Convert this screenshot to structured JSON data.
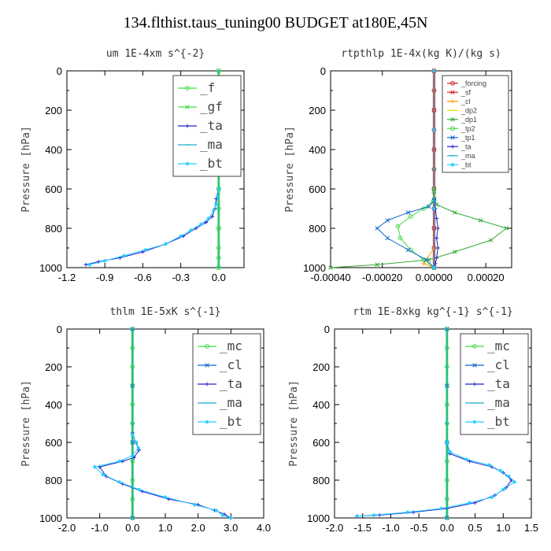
{
  "title": "134.flthist.taus_tuning00  BUDGET at180E,45N",
  "chart_data": [
    {
      "type": "line",
      "title": "um   1E-4xm s^{-2}",
      "ylabel": "Pressure [hPa]",
      "xlim": [
        -1.2,
        0.2
      ],
      "ylim": [
        1000,
        0
      ],
      "xticks": [
        "-1.2",
        "-0.9",
        "-0.6",
        "-0.3",
        "0.0"
      ],
      "yticks": [
        "0",
        "200",
        "400",
        "600",
        "800",
        "1000"
      ],
      "legend_position": "top-right",
      "legend_size": "large",
      "series": [
        {
          "name": "_f",
          "color": "#44dd44",
          "marker": "o",
          "x": [
            0.0,
            0.0,
            0.0,
            0.0,
            0.0,
            0.0,
            0.0,
            0.0,
            0.0,
            0.0,
            0.0,
            0.0
          ],
          "y": [
            0,
            100,
            200,
            300,
            400,
            500,
            600,
            700,
            800,
            900,
            950,
            1000
          ]
        },
        {
          "name": "_gf",
          "color": "#44dd44",
          "marker": "x",
          "x": [
            0.0,
            0.0,
            0.0,
            0.0,
            0.0,
            0.0
          ],
          "y": [
            0,
            200,
            400,
            600,
            800,
            1000
          ]
        },
        {
          "name": "_ta",
          "color": "#2222cc",
          "marker": "+",
          "x": [
            0.0,
            -0.02,
            -0.03,
            -0.05,
            -0.1,
            -0.18,
            -0.28,
            -0.42,
            -0.6,
            -0.78,
            -0.95,
            -1.05
          ],
          "y": [
            600,
            650,
            700,
            740,
            770,
            800,
            840,
            880,
            920,
            950,
            970,
            985
          ]
        },
        {
          "name": "_ma",
          "color": "#22aacc",
          "marker": "-",
          "x": [
            0.0,
            0.0,
            0.0,
            0.0
          ],
          "y": [
            0,
            300,
            600,
            1000
          ]
        },
        {
          "name": "_bt",
          "color": "#22ccff",
          "marker": "*",
          "x": [
            0.0,
            -0.01,
            -0.02,
            -0.04,
            -0.08,
            -0.14,
            -0.22,
            -0.3,
            -0.42,
            -0.58,
            -0.75,
            -0.9,
            -1.02
          ],
          "y": [
            600,
            640,
            680,
            710,
            750,
            780,
            810,
            840,
            880,
            910,
            940,
            965,
            985
          ]
        }
      ]
    },
    {
      "type": "line",
      "title": "rtpthlp   1E-4x(kg K)/(kg s)",
      "ylabel": "Pressure [hPa]",
      "xlim": [
        -0.0004,
        0.0003
      ],
      "ylim": [
        1000,
        0
      ],
      "xticks": [
        "-0.00040",
        "-0.00020",
        "0.00000",
        "0.00020"
      ],
      "yticks": [
        "0",
        "200",
        "400",
        "600",
        "800",
        "1000"
      ],
      "legend_position": "top-right",
      "legend_size": "small",
      "series": [
        {
          "name": "_forcing",
          "color": "#cc2222",
          "marker": "o",
          "x": [
            0,
            0,
            0,
            0,
            0,
            0,
            0,
            0,
            0,
            0,
            0
          ],
          "y": [
            0,
            100,
            200,
            300,
            400,
            500,
            600,
            700,
            800,
            900,
            1000
          ]
        },
        {
          "name": "_sf",
          "color": "#cc2222",
          "marker": "x",
          "x": [
            0,
            0,
            0,
            0,
            0,
            0
          ],
          "y": [
            0,
            200,
            400,
            600,
            800,
            1000
          ]
        },
        {
          "name": "_cl",
          "color": "#ff9900",
          "marker": "+",
          "x": [
            0,
            0,
            0,
            0,
            -4e-05,
            0
          ],
          "y": [
            0,
            300,
            600,
            900,
            980,
            1000
          ]
        },
        {
          "name": "_dp2",
          "color": "#dddd00",
          "marker": "-",
          "x": [
            0,
            0,
            0
          ],
          "y": [
            0,
            500,
            1000
          ]
        },
        {
          "name": "_dp1",
          "color": "#33aa33",
          "marker": "x",
          "x": [
            0,
            2e-06,
            1e-05,
            8e-05,
            0.00018,
            0.00028,
            0.00022,
            8e-05,
            -2e-05,
            -0.00022,
            -0.0004
          ],
          "y": [
            600,
            650,
            680,
            720,
            760,
            800,
            860,
            920,
            960,
            985,
            1000
          ]
        },
        {
          "name": "_tp2",
          "color": "#44dd44",
          "marker": "o",
          "x": [
            0,
            -2e-06,
            -4e-05,
            -9e-05,
            -0.00014,
            -0.00013,
            -9e-05,
            -4e-05,
            0
          ],
          "y": [
            620,
            660,
            700,
            740,
            790,
            850,
            910,
            960,
            1000
          ]
        },
        {
          "name": "_tp1",
          "color": "#1166cc",
          "marker": "x",
          "x": [
            0,
            -2e-05,
            -0.0001,
            -0.00018,
            -0.00022,
            -0.00018,
            -0.0001,
            -3e-05,
            0
          ],
          "y": [
            660,
            690,
            720,
            760,
            800,
            850,
            910,
            960,
            1000
          ]
        },
        {
          "name": "_ta",
          "color": "#2222cc",
          "marker": "+",
          "x": [
            0,
            5e-06,
            1e-05,
            1.5e-05,
            1e-05,
            1.5e-05,
            1e-05,
            5e-06,
            0
          ],
          "y": [
            650,
            700,
            750,
            800,
            850,
            900,
            950,
            980,
            1000
          ]
        },
        {
          "name": "_ma",
          "color": "#22aacc",
          "marker": "-",
          "x": [
            0,
            0,
            0
          ],
          "y": [
            0,
            500,
            1000
          ]
        },
        {
          "name": "_bt",
          "color": "#22ccff",
          "marker": "*",
          "x": [
            0,
            0,
            0,
            0
          ],
          "y": [
            0,
            300,
            700,
            1000
          ]
        }
      ]
    },
    {
      "type": "line",
      "title": "thlm   1E-5xK s^{-1}",
      "ylabel": "Pressure [hPa]",
      "xlim": [
        -2.0,
        4.0
      ],
      "ylim": [
        1000,
        0
      ],
      "xticks": [
        "-2.0",
        "-1.0",
        "0.0",
        "1.0",
        "2.0",
        "3.0",
        "4.0"
      ],
      "yticks": [
        "0",
        "200",
        "400",
        "600",
        "800",
        "1000"
      ],
      "legend_position": "top-right",
      "legend_size": "large",
      "series": [
        {
          "name": "_mc",
          "color": "#44dd44",
          "marker": "o",
          "x": [
            0,
            0,
            0,
            0,
            0,
            0,
            0,
            0,
            0,
            0,
            0
          ],
          "y": [
            0,
            100,
            200,
            300,
            400,
            500,
            600,
            700,
            800,
            900,
            1000
          ]
        },
        {
          "name": "_cl",
          "color": "#1166cc",
          "marker": "x",
          "x": [
            0,
            0,
            0,
            0
          ],
          "y": [
            0,
            300,
            600,
            1000
          ]
        },
        {
          "name": "_ta",
          "color": "#2222cc",
          "marker": "+",
          "x": [
            0,
            0.1,
            0.2,
            0.05,
            -0.3,
            -1.0,
            -0.8,
            -0.3,
            0.3,
            1.1,
            2.0,
            2.5,
            2.8,
            3.0
          ],
          "y": [
            550,
            600,
            640,
            680,
            700,
            730,
            780,
            820,
            860,
            900,
            930,
            960,
            980,
            1000
          ]
        },
        {
          "name": "_ma",
          "color": "#22aacc",
          "marker": "-",
          "x": [
            0,
            0,
            0
          ],
          "y": [
            0,
            500,
            1000
          ]
        },
        {
          "name": "_bt",
          "color": "#22ccff",
          "marker": "*",
          "x": [
            0,
            0.12,
            0.18,
            0.0,
            -0.4,
            -1.15,
            -0.9,
            -0.4,
            0.2,
            1.0,
            1.9,
            2.55,
            2.75,
            3.0
          ],
          "y": [
            560,
            600,
            630,
            670,
            700,
            730,
            770,
            810,
            850,
            890,
            930,
            960,
            985,
            1000
          ]
        }
      ]
    },
    {
      "type": "line",
      "title": "rtm   1E-8xkg kg^{-1} s^{-1}",
      "ylabel": "Pressure [hPa]",
      "xlim": [
        -2.0,
        1.5
      ],
      "ylim": [
        1000,
        0
      ],
      "xticks": [
        "-2.0",
        "-1.5",
        "-1.0",
        "-0.5",
        "0.0",
        "0.5",
        "1.0",
        "1.5"
      ],
      "yticks": [
        "0",
        "200",
        "400",
        "600",
        "800",
        "1000"
      ],
      "legend_position": "top-right",
      "legend_size": "large",
      "series": [
        {
          "name": "_mc",
          "color": "#44dd44",
          "marker": "o",
          "x": [
            0,
            0,
            0,
            0,
            0,
            0,
            0,
            0,
            0,
            0,
            0
          ],
          "y": [
            0,
            100,
            200,
            300,
            400,
            500,
            600,
            700,
            800,
            900,
            1000
          ]
        },
        {
          "name": "_cl",
          "color": "#1166cc",
          "marker": "x",
          "x": [
            0,
            0,
            0,
            0
          ],
          "y": [
            0,
            300,
            600,
            1000
          ]
        },
        {
          "name": "_ta",
          "color": "#2222cc",
          "marker": "+",
          "x": [
            0,
            0.05,
            0.4,
            0.8,
            1.0,
            1.15,
            1.05,
            0.85,
            0.5,
            0.0,
            -0.6,
            -1.2,
            -1.6
          ],
          "y": [
            600,
            660,
            700,
            730,
            760,
            800,
            840,
            880,
            920,
            950,
            970,
            985,
            990
          ]
        },
        {
          "name": "_ma",
          "color": "#22aacc",
          "marker": "-",
          "x": [
            0,
            0,
            0
          ],
          "y": [
            0,
            500,
            1000
          ]
        },
        {
          "name": "_bt",
          "color": "#22ccff",
          "marker": "*",
          "x": [
            0,
            0.05,
            0.35,
            0.75,
            0.95,
            1.1,
            1.2,
            1.0,
            0.8,
            0.4,
            -0.1,
            -0.7,
            -1.3,
            -1.6
          ],
          "y": [
            600,
            650,
            690,
            720,
            750,
            780,
            810,
            850,
            890,
            920,
            950,
            970,
            985,
            990
          ]
        }
      ]
    }
  ]
}
